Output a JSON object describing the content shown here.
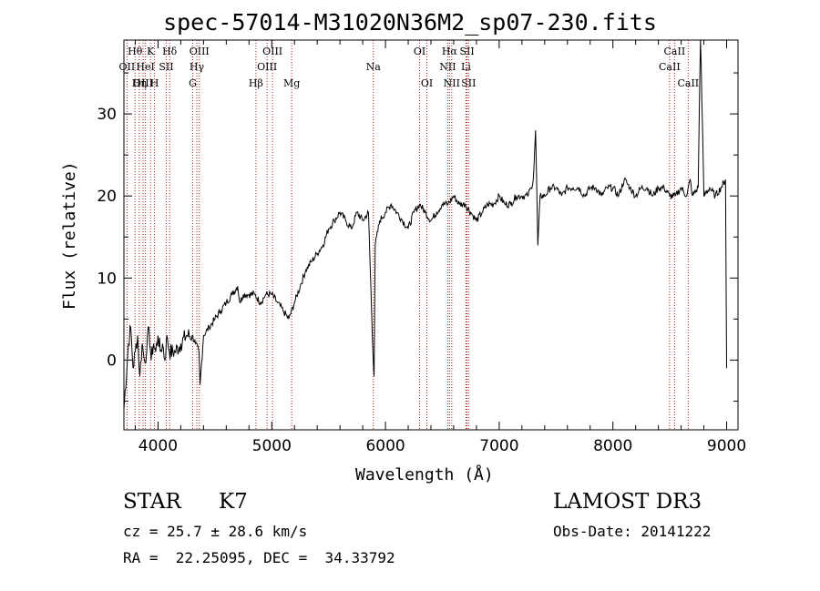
{
  "chart_data": {
    "type": "line",
    "title": "spec-57014-M31020N36M2_sp07-230.fits",
    "xlabel": "Wavelength (Å)",
    "ylabel": "Flux (relative)",
    "xlim": [
      3700,
      9100
    ],
    "ylim": [
      -8.5,
      39
    ],
    "xticks": [
      4000,
      5000,
      6000,
      7000,
      8000,
      9000
    ],
    "yticks": [
      0,
      10,
      20,
      30
    ],
    "xtick_labels": [
      "4000",
      "5000",
      "6000",
      "7000",
      "8000",
      "9000"
    ],
    "ytick_labels": [
      "0",
      "10",
      "20",
      "30"
    ],
    "series": [
      {
        "name": "flux",
        "x": [
          3700,
          3740,
          3760,
          3780,
          3800,
          3820,
          3840,
          3860,
          3880,
          3900,
          3920,
          3940,
          3960,
          3980,
          4000,
          4020,
          4040,
          4060,
          4080,
          4100,
          4150,
          4200,
          4250,
          4300,
          4330,
          4360,
          4370,
          4400,
          4450,
          4500,
          4550,
          4600,
          4650,
          4700,
          4720,
          4750,
          4800,
          4850,
          4900,
          4950,
          5000,
          5050,
          5100,
          5150,
          5200,
          5250,
          5300,
          5350,
          5400,
          5450,
          5500,
          5550,
          5600,
          5650,
          5700,
          5750,
          5800,
          5850,
          5890,
          5900,
          5910,
          5950,
          6000,
          6050,
          6100,
          6150,
          6200,
          6250,
          6300,
          6350,
          6400,
          6450,
          6500,
          6550,
          6600,
          6650,
          6700,
          6750,
          6800,
          6850,
          6900,
          6950,
          7000,
          7050,
          7100,
          7150,
          7200,
          7250,
          7280,
          7300,
          7320,
          7340,
          7360,
          7400,
          7450,
          7500,
          7550,
          7600,
          7650,
          7700,
          7750,
          7800,
          7850,
          7900,
          7950,
          8000,
          8050,
          8100,
          8150,
          8200,
          8250,
          8300,
          8350,
          8400,
          8450,
          8500,
          8550,
          8600,
          8650,
          8680,
          8700,
          8750,
          8770,
          8800,
          8850,
          8900,
          8950,
          8990,
          9000
        ],
        "y": [
          -6,
          2,
          4,
          -1,
          1,
          3,
          -2,
          2,
          0,
          1,
          4,
          0,
          2,
          1,
          3,
          1,
          2,
          0,
          3,
          1,
          1,
          2,
          3,
          3,
          2,
          1,
          -3,
          3,
          4,
          5,
          6,
          7,
          8,
          9,
          7,
          8,
          8,
          8,
          7,
          8,
          8,
          7,
          6,
          5,
          7,
          9,
          11,
          12,
          13,
          14,
          16,
          17,
          18,
          17,
          16,
          18,
          17,
          18,
          1,
          -2,
          14,
          17,
          18,
          19,
          18,
          17,
          16,
          18,
          19,
          18,
          17,
          18,
          19,
          19,
          20,
          19,
          19,
          18,
          17,
          18,
          19,
          19,
          20,
          19,
          19,
          20,
          20,
          20,
          21,
          22,
          28,
          14,
          20,
          20,
          21,
          21,
          20,
          21,
          21,
          21,
          20,
          21,
          21,
          20,
          21,
          21,
          20,
          22,
          21,
          20,
          21,
          21,
          20,
          21,
          21,
          20,
          20,
          21,
          20,
          22,
          20,
          21,
          40,
          20,
          21,
          20,
          21,
          22,
          -1
        ]
      }
    ],
    "lines": [
      {
        "label": "Hθ",
        "x": 3798,
        "row": 0
      },
      {
        "label": "OII",
        "x": 3727,
        "row": 1
      },
      {
        "label": "OIII",
        "x": 3869,
        "row": 2
      },
      {
        "label": "K",
        "x": 3934,
        "row": 0
      },
      {
        "label": "HeI",
        "x": 3889,
        "row": 1
      },
      {
        "label": "Hη",
        "x": 3835,
        "row": 2
      },
      {
        "label": "Hδ",
        "x": 4102,
        "row": 0
      },
      {
        "label": "SII",
        "x": 4072,
        "row": 1
      },
      {
        "label": "H",
        "x": 3969,
        "row": 2
      },
      {
        "label": "OIII",
        "x": 4363,
        "row": 0
      },
      {
        "label": "Hγ",
        "x": 4341,
        "row": 1
      },
      {
        "label": "G",
        "x": 4305,
        "row": 2
      },
      {
        "label": "OIII",
        "x": 5007,
        "row": 0
      },
      {
        "label": "OIII",
        "x": 4959,
        "row": 1
      },
      {
        "label": "Hβ",
        "x": 4861,
        "row": 2
      },
      {
        "label": "Mg",
        "x": 5175,
        "row": 2
      },
      {
        "label": "Na",
        "x": 5893,
        "row": 1
      },
      {
        "label": "OI",
        "x": 6300,
        "row": 0
      },
      {
        "label": "OI",
        "x": 6364,
        "row": 2
      },
      {
        "label": "Hα",
        "x": 6563,
        "row": 0
      },
      {
        "label": "NII",
        "x": 6548,
        "row": 1
      },
      {
        "label": "NII",
        "x": 6583,
        "row": 2
      },
      {
        "label": "SII",
        "x": 6717,
        "row": 0
      },
      {
        "label": "Li",
        "x": 6708,
        "row": 1
      },
      {
        "label": "SII",
        "x": 6731,
        "row": 2
      },
      {
        "label": "CaII",
        "x": 8542,
        "row": 0
      },
      {
        "label": "CaII",
        "x": 8498,
        "row": 1
      },
      {
        "label": "CaII",
        "x": 8662,
        "row": 2
      }
    ],
    "line_color": "#b22222"
  },
  "info": {
    "class_label": "STAR",
    "subclass_label": "K7",
    "survey_label": "LAMOST DR3",
    "cz_label": "cz = 25.7 ± 28.6 km/s",
    "obsdate_label": "Obs-Date: 20141222",
    "radec_label": "RA =  22.25095, DEC =  34.33792"
  }
}
